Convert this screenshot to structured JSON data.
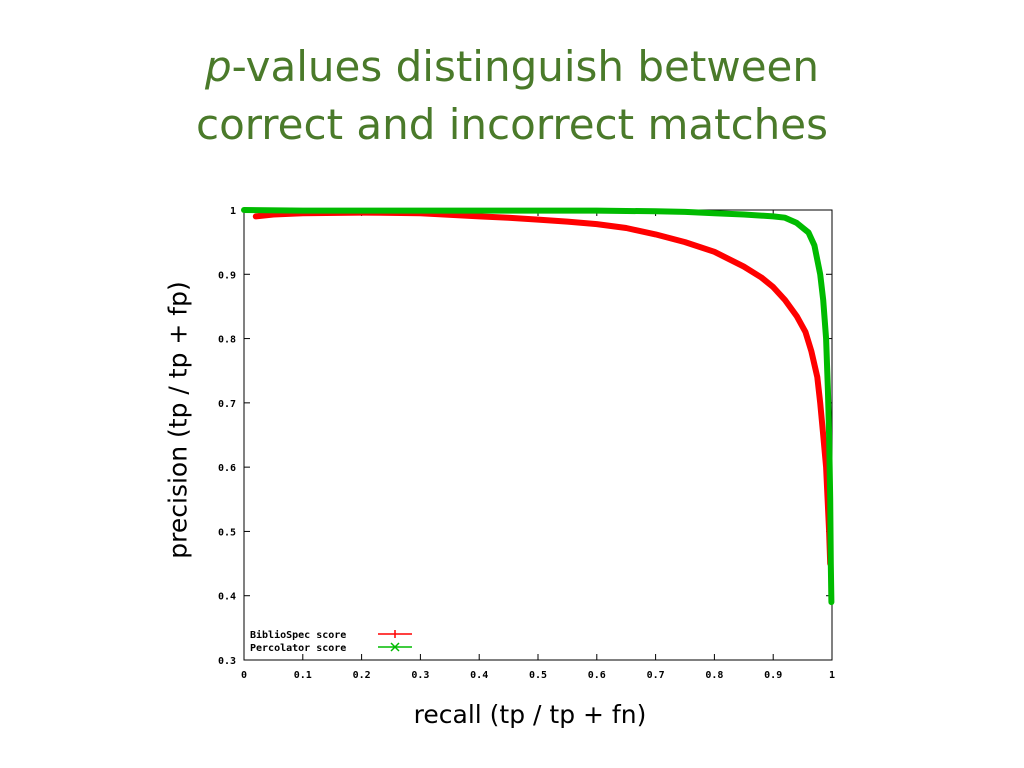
{
  "slide": {
    "title_italic": "p",
    "title_rest": "-values distinguish between",
    "title_line2": "correct and incorrect matches"
  },
  "chart_data": {
    "type": "line",
    "xlabel": "recall (tp / tp + fn)",
    "ylabel": "precision (tp / tp + fp)",
    "xlim": [
      0,
      1
    ],
    "ylim": [
      0.3,
      1
    ],
    "xticks": [
      "0",
      "0.1",
      "0.2",
      "0.3",
      "0.4",
      "0.5",
      "0.6",
      "0.7",
      "0.8",
      "0.9",
      "1"
    ],
    "yticks": [
      "0.3",
      "0.4",
      "0.5",
      "0.6",
      "0.7",
      "0.8",
      "0.9",
      "1"
    ],
    "grid": false,
    "legend_position": "bottom-left",
    "series": [
      {
        "name": "BiblioSpec score",
        "color": "#ff0000",
        "marker": "plus",
        "x": [
          0.02,
          0.05,
          0.1,
          0.2,
          0.3,
          0.4,
          0.45,
          0.5,
          0.55,
          0.6,
          0.65,
          0.7,
          0.75,
          0.8,
          0.85,
          0.88,
          0.9,
          0.92,
          0.94,
          0.955,
          0.965,
          0.975,
          0.98,
          0.985,
          0.99,
          0.995,
          0.997
        ],
        "y": [
          0.99,
          0.993,
          0.995,
          0.996,
          0.995,
          0.99,
          0.988,
          0.985,
          0.982,
          0.978,
          0.972,
          0.962,
          0.95,
          0.935,
          0.912,
          0.895,
          0.88,
          0.86,
          0.835,
          0.81,
          0.78,
          0.74,
          0.7,
          0.65,
          0.6,
          0.5,
          0.45
        ]
      },
      {
        "name": "Percolator score",
        "color": "#00bb00",
        "marker": "x",
        "x": [
          0.0,
          0.1,
          0.2,
          0.3,
          0.4,
          0.5,
          0.6,
          0.7,
          0.75,
          0.8,
          0.85,
          0.9,
          0.92,
          0.94,
          0.96,
          0.97,
          0.98,
          0.985,
          0.99,
          0.993,
          0.995,
          0.997,
          0.998,
          0.999
        ],
        "y": [
          1.0,
          0.999,
          0.999,
          0.999,
          0.999,
          0.999,
          0.999,
          0.998,
          0.997,
          0.995,
          0.993,
          0.99,
          0.988,
          0.98,
          0.965,
          0.945,
          0.9,
          0.86,
          0.8,
          0.72,
          0.65,
          0.55,
          0.45,
          0.39
        ]
      }
    ]
  }
}
